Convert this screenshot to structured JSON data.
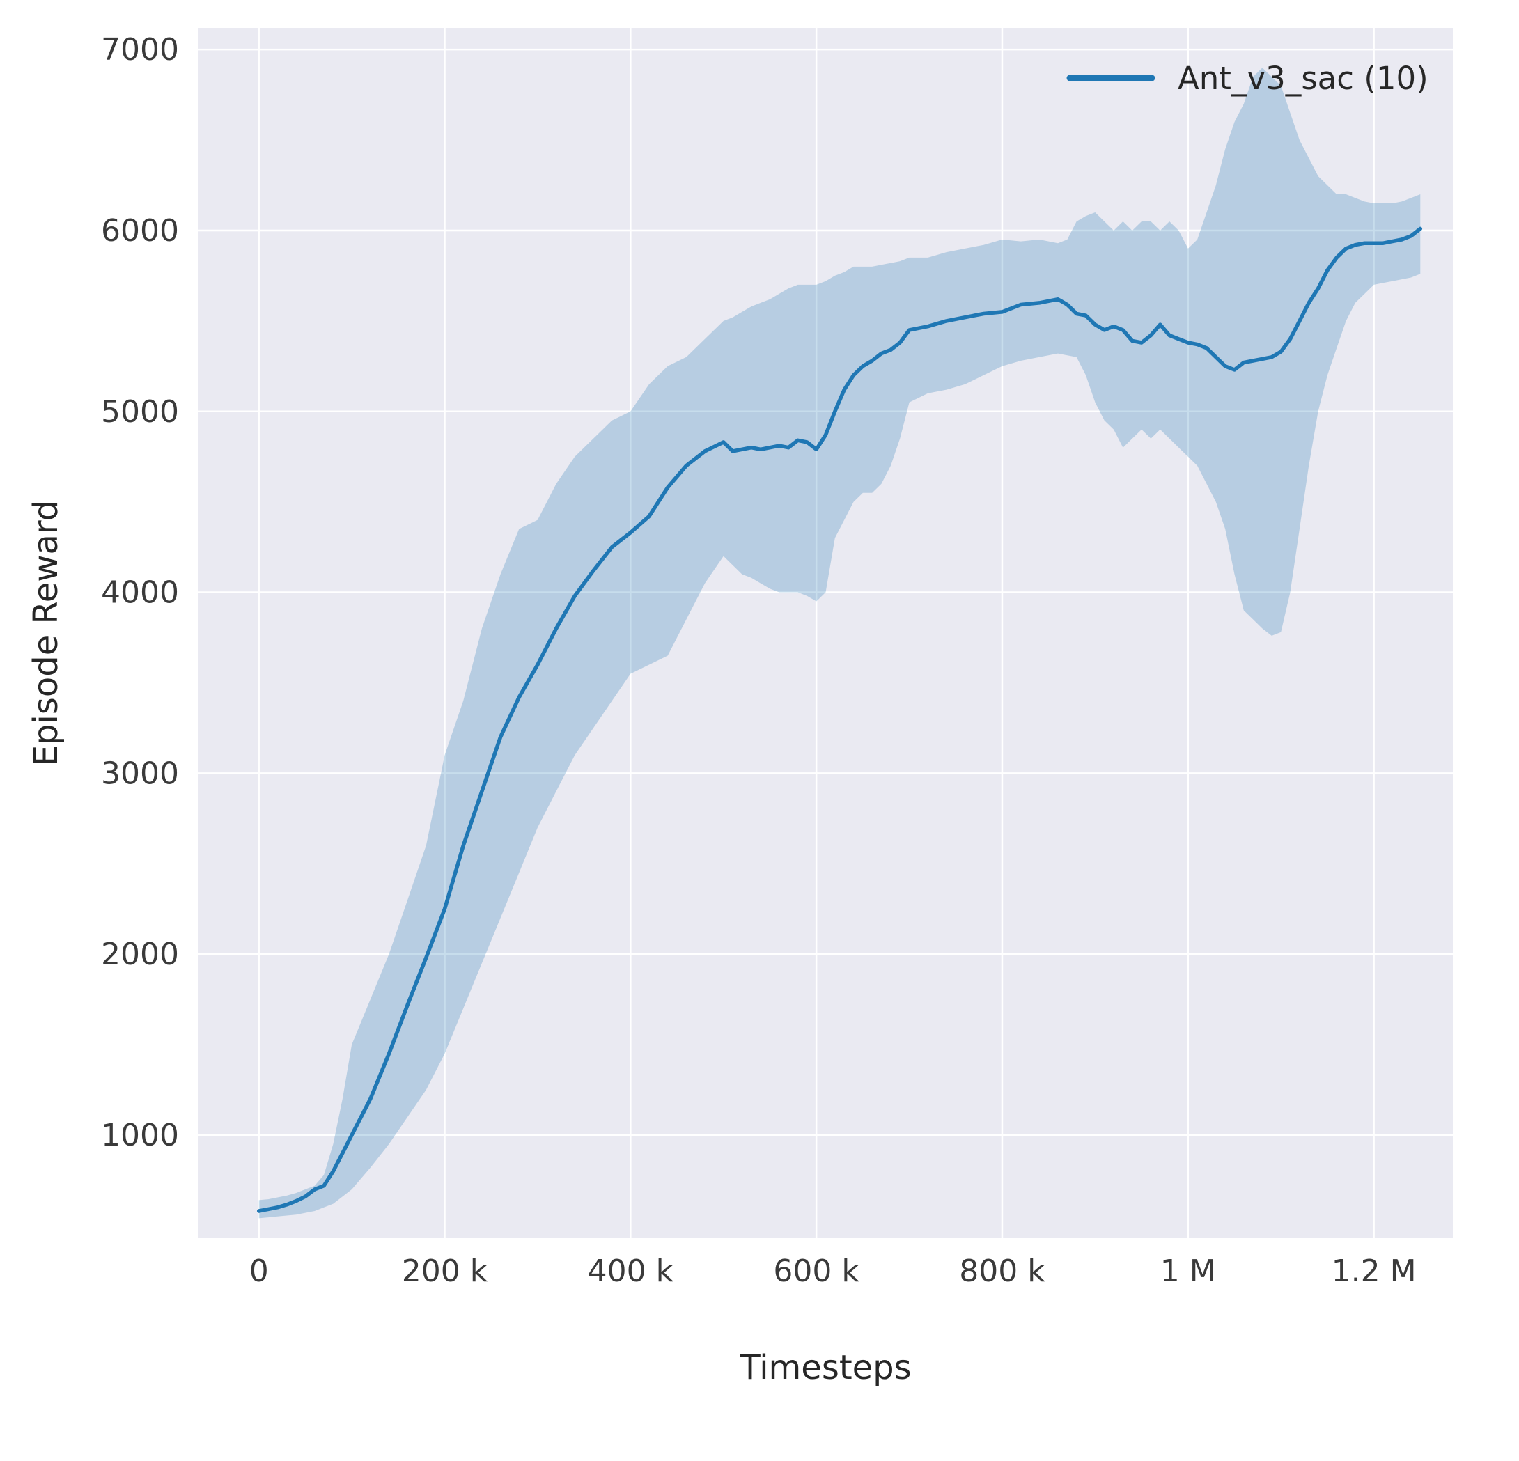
{
  "figure": {
    "background": "#ffffff",
    "plot_background": "#eaeaf2",
    "grid_color": "#ffffff",
    "tick_color": "#3a3a3a",
    "label_color": "#262626"
  },
  "chart_data": {
    "type": "line",
    "title": "",
    "xlabel": "Timesteps",
    "ylabel": "Episode Reward",
    "xlim": [
      -65000,
      1285000
    ],
    "ylim": [
      430,
      7120
    ],
    "grid": true,
    "x_ticks": [
      0,
      200000,
      400000,
      600000,
      800000,
      1000000,
      1200000
    ],
    "x_tick_labels": [
      "0",
      "200 k",
      "400 k",
      "600 k",
      "800 k",
      "1 M",
      "1.2 M"
    ],
    "y_ticks": [
      1000,
      2000,
      3000,
      4000,
      5000,
      6000,
      7000
    ],
    "y_tick_labels": [
      "1000",
      "2000",
      "3000",
      "4000",
      "5000",
      "6000",
      "7000"
    ],
    "legend": {
      "position": "top-right",
      "entries": [
        {
          "label": "Ant_v3_sac (10)",
          "color": "#1f77b4"
        }
      ]
    },
    "band_alpha": 0.25,
    "line_width": 5.5,
    "series": [
      {
        "name": "Ant_v3_sac (10)",
        "color": "#1f77b4",
        "x": [
          0,
          10000,
          20000,
          30000,
          40000,
          50000,
          60000,
          70000,
          80000,
          90000,
          100000,
          120000,
          140000,
          160000,
          180000,
          200000,
          220000,
          240000,
          260000,
          280000,
          300000,
          320000,
          340000,
          360000,
          380000,
          400000,
          420000,
          440000,
          460000,
          480000,
          500000,
          510000,
          520000,
          530000,
          540000,
          550000,
          560000,
          570000,
          580000,
          590000,
          600000,
          610000,
          620000,
          630000,
          640000,
          650000,
          660000,
          670000,
          680000,
          690000,
          700000,
          720000,
          740000,
          760000,
          780000,
          800000,
          820000,
          840000,
          860000,
          870000,
          880000,
          890000,
          900000,
          910000,
          920000,
          930000,
          940000,
          950000,
          960000,
          970000,
          980000,
          990000,
          1000000,
          1010000,
          1020000,
          1030000,
          1040000,
          1050000,
          1060000,
          1070000,
          1080000,
          1090000,
          1100000,
          1110000,
          1120000,
          1130000,
          1140000,
          1150000,
          1160000,
          1170000,
          1180000,
          1190000,
          1200000,
          1210000,
          1220000,
          1230000,
          1240000,
          1250000
        ],
        "mean": [
          580,
          590,
          600,
          615,
          635,
          660,
          700,
          720,
          800,
          900,
          1000,
          1200,
          1450,
          1720,
          1980,
          2250,
          2600,
          2900,
          3200,
          3420,
          3600,
          3800,
          3980,
          4120,
          4250,
          4330,
          4420,
          4580,
          4700,
          4780,
          4830,
          4780,
          4790,
          4800,
          4790,
          4800,
          4810,
          4800,
          4840,
          4830,
          4790,
          4870,
          5000,
          5120,
          5200,
          5250,
          5280,
          5320,
          5340,
          5380,
          5450,
          5470,
          5500,
          5520,
          5540,
          5550,
          5590,
          5600,
          5620,
          5590,
          5540,
          5530,
          5480,
          5450,
          5470,
          5450,
          5390,
          5380,
          5420,
          5480,
          5420,
          5400,
          5380,
          5370,
          5350,
          5300,
          5250,
          5230,
          5270,
          5280,
          5290,
          5300,
          5330,
          5400,
          5500,
          5600,
          5680,
          5780,
          5850,
          5900,
          5920,
          5930,
          5930,
          5930,
          5940,
          5950,
          5970,
          6010
        ],
        "lower": [
          540,
          545,
          550,
          555,
          560,
          570,
          580,
          600,
          620,
          660,
          700,
          820,
          950,
          1100,
          1250,
          1450,
          1700,
          1950,
          2200,
          2450,
          2700,
          2900,
          3100,
          3250,
          3400,
          3550,
          3600,
          3650,
          3850,
          4050,
          4200,
          4150,
          4100,
          4080,
          4050,
          4020,
          4000,
          4000,
          4000,
          3980,
          3950,
          4000,
          4300,
          4400,
          4500,
          4550,
          4550,
          4600,
          4700,
          4850,
          5050,
          5100,
          5120,
          5150,
          5200,
          5250,
          5280,
          5300,
          5320,
          5310,
          5300,
          5200,
          5050,
          4950,
          4900,
          4800,
          4850,
          4900,
          4850,
          4900,
          4850,
          4800,
          4750,
          4700,
          4600,
          4500,
          4350,
          4100,
          3900,
          3850,
          3800,
          3760,
          3780,
          4000,
          4350,
          4700,
          5000,
          5200,
          5350,
          5500,
          5600,
          5650,
          5700,
          5710,
          5720,
          5730,
          5740,
          5760
        ],
        "upper": [
          640,
          645,
          655,
          665,
          680,
          700,
          720,
          780,
          950,
          1200,
          1500,
          1750,
          2000,
          2300,
          2600,
          3100,
          3400,
          3800,
          4100,
          4350,
          4400,
          4600,
          4750,
          4850,
          4950,
          5000,
          5150,
          5250,
          5300,
          5400,
          5500,
          5520,
          5550,
          5580,
          5600,
          5620,
          5650,
          5680,
          5700,
          5700,
          5700,
          5720,
          5750,
          5770,
          5800,
          5800,
          5800,
          5810,
          5820,
          5830,
          5850,
          5850,
          5880,
          5900,
          5920,
          5950,
          5940,
          5950,
          5930,
          5950,
          6050,
          6080,
          6100,
          6050,
          6000,
          6050,
          6000,
          6050,
          6050,
          6000,
          6050,
          6000,
          5900,
          5950,
          6100,
          6250,
          6450,
          6600,
          6700,
          6850,
          6900,
          6850,
          6800,
          6650,
          6500,
          6400,
          6300,
          6250,
          6200,
          6200,
          6180,
          6160,
          6150,
          6150,
          6150,
          6160,
          6180,
          6200
        ]
      }
    ]
  }
}
